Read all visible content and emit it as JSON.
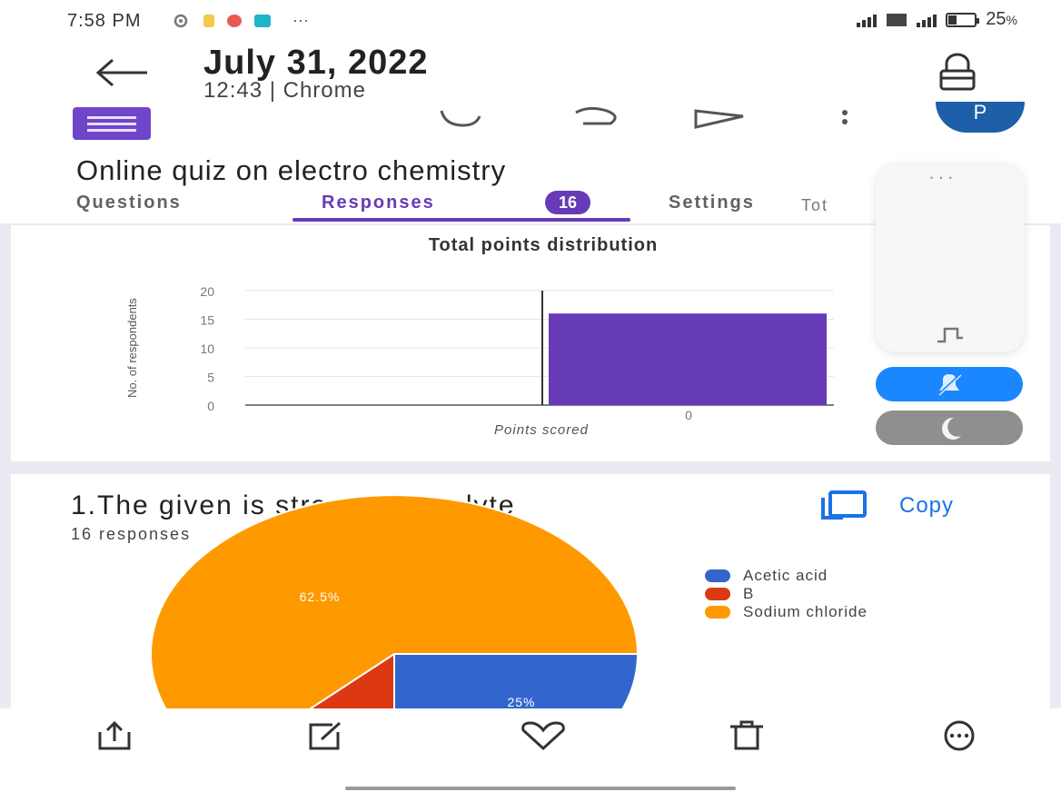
{
  "status_bar": {
    "time": "7:58 PM",
    "battery": "25",
    "battery_unit": "%",
    "overflow_dots": "···"
  },
  "header": {
    "title": "July 31, 2022",
    "subtitle": "12:43 | Chrome"
  },
  "form": {
    "title": "Online quiz on electro chemistry",
    "avatar_letter": "P",
    "tabs": [
      {
        "label": "Questions"
      },
      {
        "label": "Responses",
        "badge": "16"
      },
      {
        "label": "Settings"
      }
    ],
    "tabs_overflow_text": "Tot",
    "tabs_overflow_end": "0"
  },
  "floating_panel": {
    "dots": "···"
  },
  "points_chart": {
    "chart_data": {
      "type": "bar",
      "title": "Total points distribution",
      "xlabel": "Points scored",
      "ylabel": "No. of respondents",
      "categories": [
        "0"
      ],
      "values": [
        16
      ],
      "ylim": [
        0,
        20
      ],
      "yticks": [
        "0",
        "5",
        "10",
        "15",
        "20"
      ],
      "bar_color": "#673ab7",
      "grid": true,
      "median_line_x": "0"
    }
  },
  "question1": {
    "title": "1.The given is strong electrolyte",
    "responses": "16 responses",
    "copy_label": "Copy",
    "chart_data": {
      "type": "pie",
      "slices": [
        {
          "label": "Acetic acid",
          "value": 25,
          "color": "#3366cc",
          "display": "25%"
        },
        {
          "label": "B",
          "value": 12.5,
          "color": "#dc3912",
          "display": ""
        },
        {
          "label": "Sodium chloride",
          "value": 62.5,
          "color": "#ff9900",
          "display": "62.5%"
        }
      ],
      "legend_position": "right"
    }
  },
  "colors": {
    "accent": "#673ab7",
    "link": "#1a73e8",
    "toggle_blue": "#1a87ff",
    "toggle_gray": "#8f8f8f"
  },
  "bottom_bar": {
    "icons": [
      "share-icon",
      "edit-icon",
      "heart-icon",
      "delete-icon",
      "more-icon"
    ]
  }
}
